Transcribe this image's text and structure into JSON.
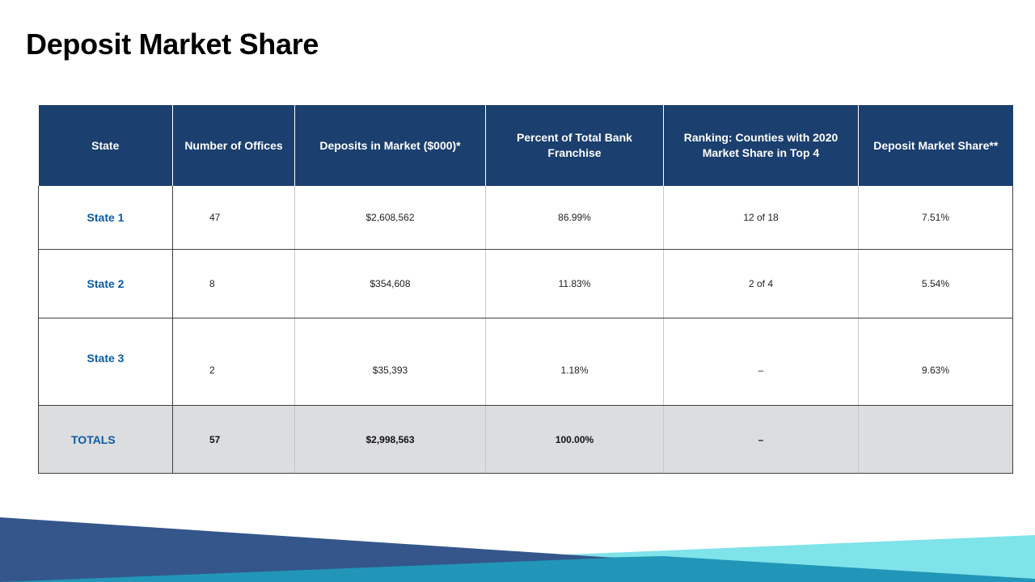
{
  "title": "Deposit Market Share",
  "columns": [
    "State",
    "Number of Offices",
    "Deposits in Market ($000)*",
    "Percent of Total Bank Franchise",
    "Ranking: Counties with 2020 Market Share in Top 4",
    "Deposit Market Share**"
  ],
  "rows": [
    {
      "state": "State 1",
      "offices": "47",
      "deposits": "$2,608,562",
      "percent": "86.99%",
      "ranking": "12 of 18",
      "share": "7.51%"
    },
    {
      "state": "State 2",
      "offices": "8",
      "deposits": "$354,608",
      "percent": "11.83%",
      "ranking": "2 of 4",
      "share": "5.54%"
    },
    {
      "state": "State 3",
      "offices": "2",
      "deposits": "$35,393",
      "percent": "1.18%",
      "ranking": "–",
      "share": "9.63%"
    }
  ],
  "totals": {
    "label": "TOTALS",
    "offices": "57",
    "deposits": "$2,998,563",
    "percent": "100.00%",
    "ranking": "–",
    "share": ""
  },
  "colors": {
    "header_bg": "#1b3f6e",
    "state_text": "#0b5aa6",
    "totals_bg": "#dcdddf",
    "wave_dark": "#34568b",
    "wave_teal": "#2196b8",
    "wave_light": "#7fe3ea"
  }
}
